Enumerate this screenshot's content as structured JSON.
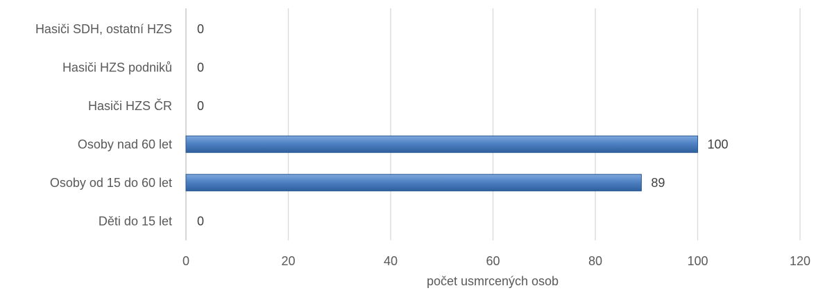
{
  "chart_data": {
    "type": "bar",
    "orientation": "horizontal",
    "categories": [
      "Hasiči SDH, ostatní HZS",
      "Hasiči HZS podniků",
      "Hasiči HZS ČR",
      "Osoby nad 60 let",
      "Osoby od 15 do 60 let",
      "Děti do 15 let"
    ],
    "values": [
      0,
      0,
      0,
      100,
      89,
      0
    ],
    "xlabel": "počet usmrcených osob",
    "ylabel": "",
    "xlim": [
      0,
      120
    ],
    "x_ticks": [
      0,
      20,
      40,
      60,
      80,
      100,
      120
    ],
    "grid": "vertical",
    "data_labels": true,
    "bar_color": "#4a7ebb"
  }
}
